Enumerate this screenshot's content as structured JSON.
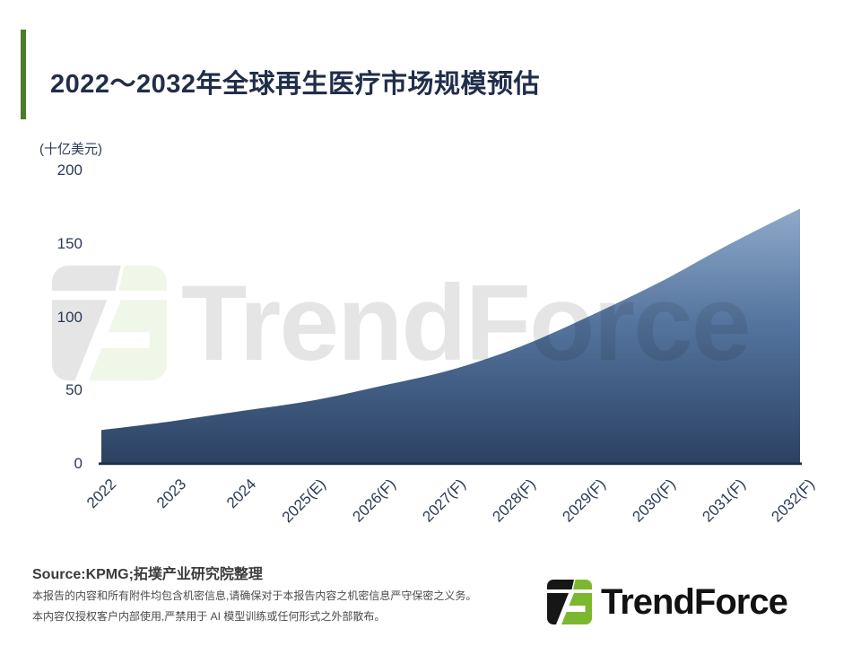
{
  "slide": {
    "title": "2022～2032年全球再生医疗市场规模预估"
  },
  "chart_data": {
    "type": "area",
    "title": "2022～2032年全球再生医疗市场规模预估",
    "unit_label": "(十亿美元)",
    "categories": [
      "2022",
      "2023",
      "2024",
      "2025(E)",
      "2026(F)",
      "2027(F)",
      "2028(F)",
      "2029(F)",
      "2030(F)",
      "2031(F)",
      "2032(F)"
    ],
    "values": [
      23,
      29,
      36,
      43,
      53,
      64,
      80,
      101,
      124,
      150,
      174
    ],
    "ylabel": "(十亿美元)",
    "ylim": [
      0,
      200
    ],
    "yticks": [
      200,
      150,
      100,
      50,
      0
    ],
    "grid": false,
    "legend": "none",
    "colors": {
      "area_gradient_top": "#8fa9c9",
      "area_gradient_mid": "#54749f",
      "area_gradient_bottom": "#2b4161",
      "axis_line": "#1b2f47",
      "tick_text": "#2b3a55"
    }
  },
  "footer": {
    "source": "Source:KPMG;拓墣产业研究院整理",
    "disclaimer_line1": "本报告的内容和所有附件均包含机密信息,请确保对于本报告内容之机密信息严守保密之义务。",
    "disclaimer_line2": "本内容仅授权客户内部使用,严禁用于 AI 模型训练或任何形式之外部散布。"
  },
  "branding": {
    "logo_text": "TrendForce",
    "watermark_text": "TrendForce",
    "accent_green": "#4a7d28",
    "logo_green": "#7cb82f",
    "logo_black": "#161616",
    "title_navy": "#212e4a"
  }
}
